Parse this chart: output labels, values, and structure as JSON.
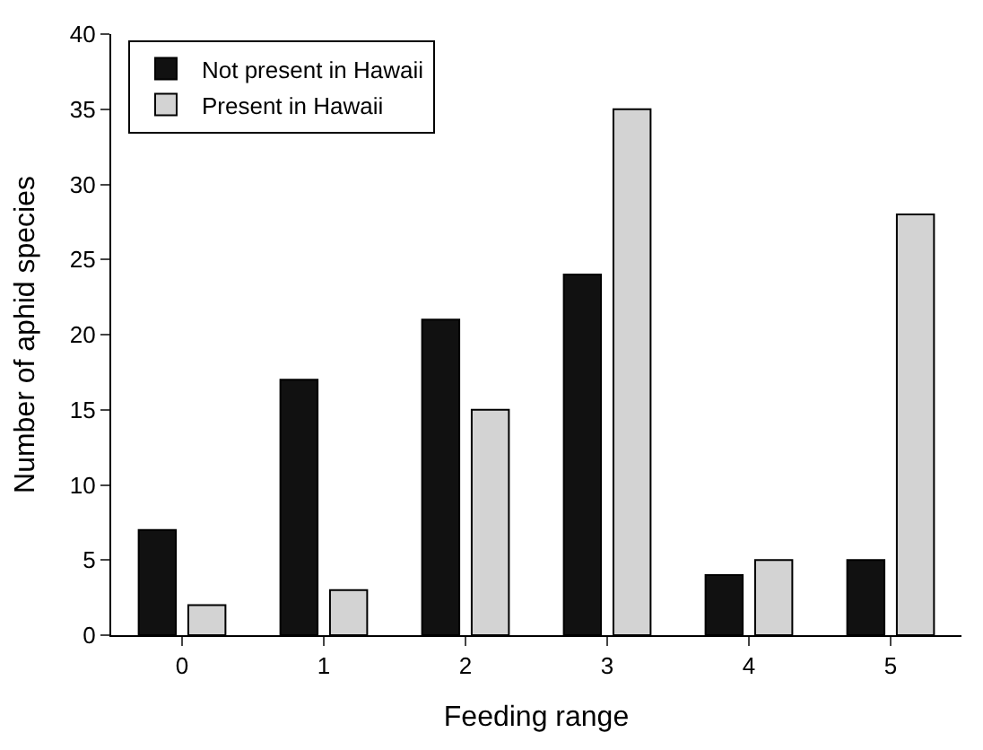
{
  "chart_data": {
    "type": "bar",
    "xlabel": "Feeding range",
    "ylabel": "Number of aphid species",
    "categories": [
      "0",
      "1",
      "2",
      "3",
      "4",
      "5"
    ],
    "series": [
      {
        "name": "Not present in Hawaii",
        "color": "#111111",
        "values": [
          7,
          17,
          21,
          24,
          4,
          5
        ]
      },
      {
        "name": "Present in Hawaii",
        "color": "#d3d3d3",
        "values": [
          2,
          3,
          15,
          35,
          5,
          28
        ]
      }
    ],
    "ylim": [
      0,
      40
    ],
    "yticks": [
      0,
      5,
      10,
      15,
      20,
      25,
      30,
      35,
      40
    ],
    "grid": false,
    "legend": "top left"
  }
}
